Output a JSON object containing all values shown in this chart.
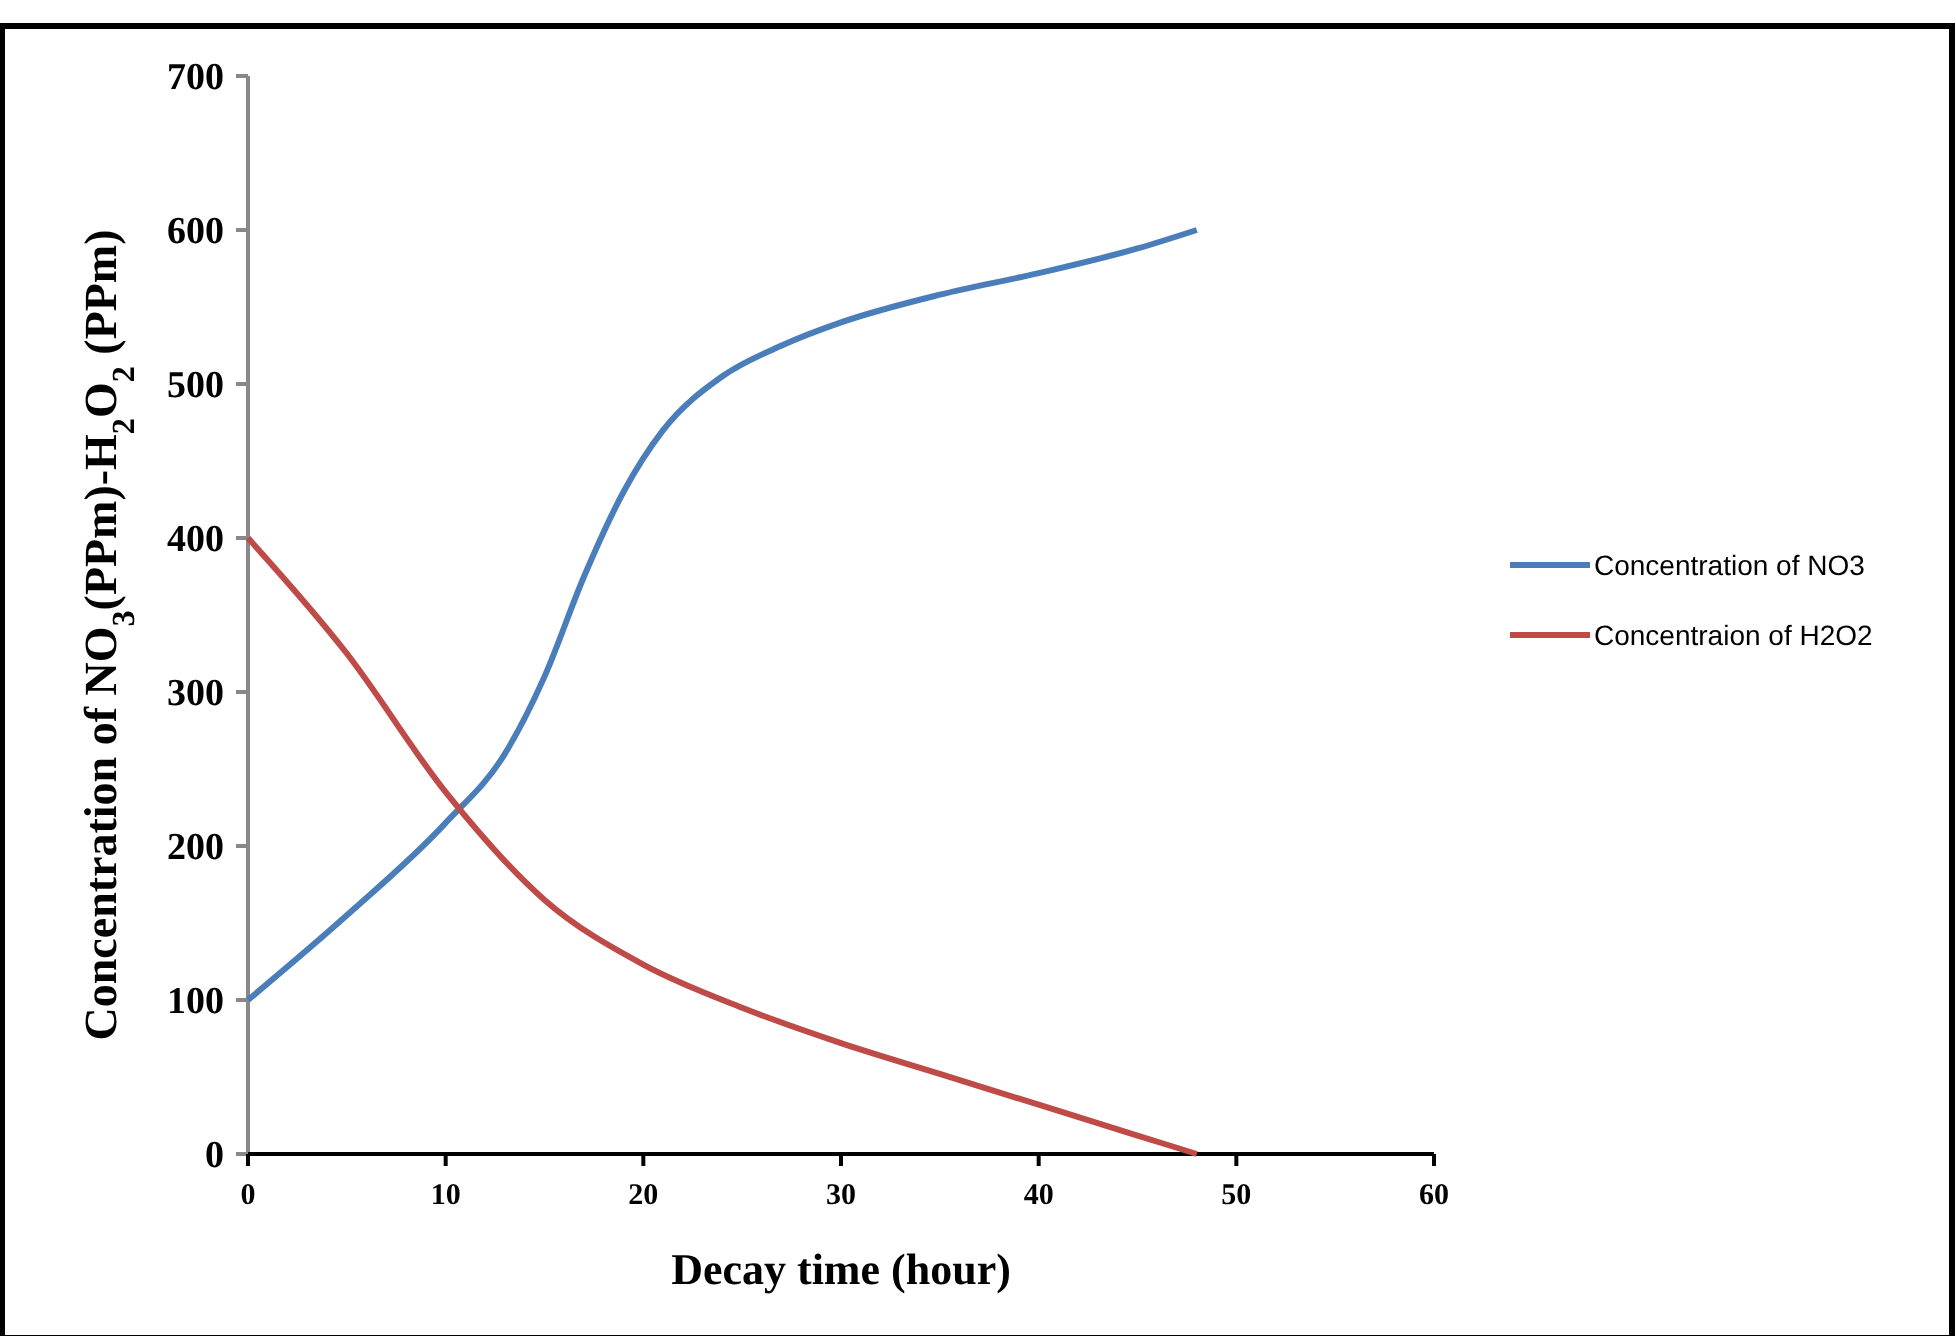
{
  "chart_data": {
    "type": "line",
    "xlabel": "Decay time (hour)",
    "ylabel": "Concentration of NO$_{3}$(PPm)-H$_{2}$O$_{2}$ (PPm)",
    "xlim": [
      0,
      60
    ],
    "xticks": [
      0,
      10,
      20,
      30,
      40,
      50,
      60
    ],
    "ylim": [
      0,
      700
    ],
    "yticks": [
      0,
      100,
      200,
      300,
      400,
      500,
      600,
      700
    ],
    "grid": false,
    "legend": "right",
    "marker": "none",
    "line_style": "solid",
    "series": [
      {
        "name": "Concentration of NO3",
        "color": "#4a7ebb",
        "x": [
          0,
          5,
          10,
          13,
          15,
          17,
          19,
          21,
          24,
          27,
          30,
          35,
          40,
          45,
          48
        ],
        "values": [
          100,
          155,
          215,
          260,
          310,
          375,
          430,
          470,
          505,
          525,
          540,
          558,
          572,
          588,
          600
        ]
      },
      {
        "name": "Concentraion of H2O2",
        "color": "#be4b48",
        "x": [
          0,
          5,
          10,
          15,
          20,
          25,
          30,
          35,
          40,
          45,
          48
        ],
        "values": [
          400,
          325,
          235,
          165,
          123,
          95,
          72,
          52,
          32,
          12,
          0
        ]
      }
    ]
  }
}
